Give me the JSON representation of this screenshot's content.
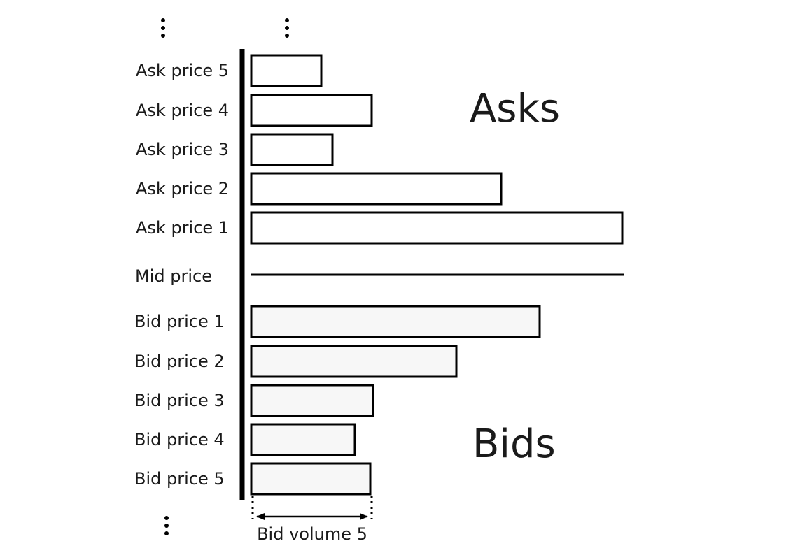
{
  "chart_data": {
    "type": "bar",
    "orientation": "horizontal",
    "asks": {
      "label": "Asks",
      "levels": [
        {
          "label": "Ask price 5",
          "volume": 100
        },
        {
          "label": "Ask price 4",
          "volume": 172
        },
        {
          "label": "Ask price 3",
          "volume": 116
        },
        {
          "label": "Ask price 2",
          "volume": 357
        },
        {
          "label": "Ask price 1",
          "volume": 530
        }
      ],
      "fill": "#ffffff"
    },
    "mid": {
      "label": "Mid price"
    },
    "bids": {
      "label": "Bids",
      "levels": [
        {
          "label": "Bid price 1",
          "volume": 412
        },
        {
          "label": "Bid price 2",
          "volume": 293
        },
        {
          "label": "Bid price 3",
          "volume": 174
        },
        {
          "label": "Bid price 4",
          "volume": 148
        },
        {
          "label": "Bid price 5",
          "volume": 170
        }
      ],
      "fill": "#f7f7f7"
    },
    "annotation": {
      "label": "Bid volume 5",
      "level": "Bid price 5"
    },
    "stroke": "#000000"
  }
}
